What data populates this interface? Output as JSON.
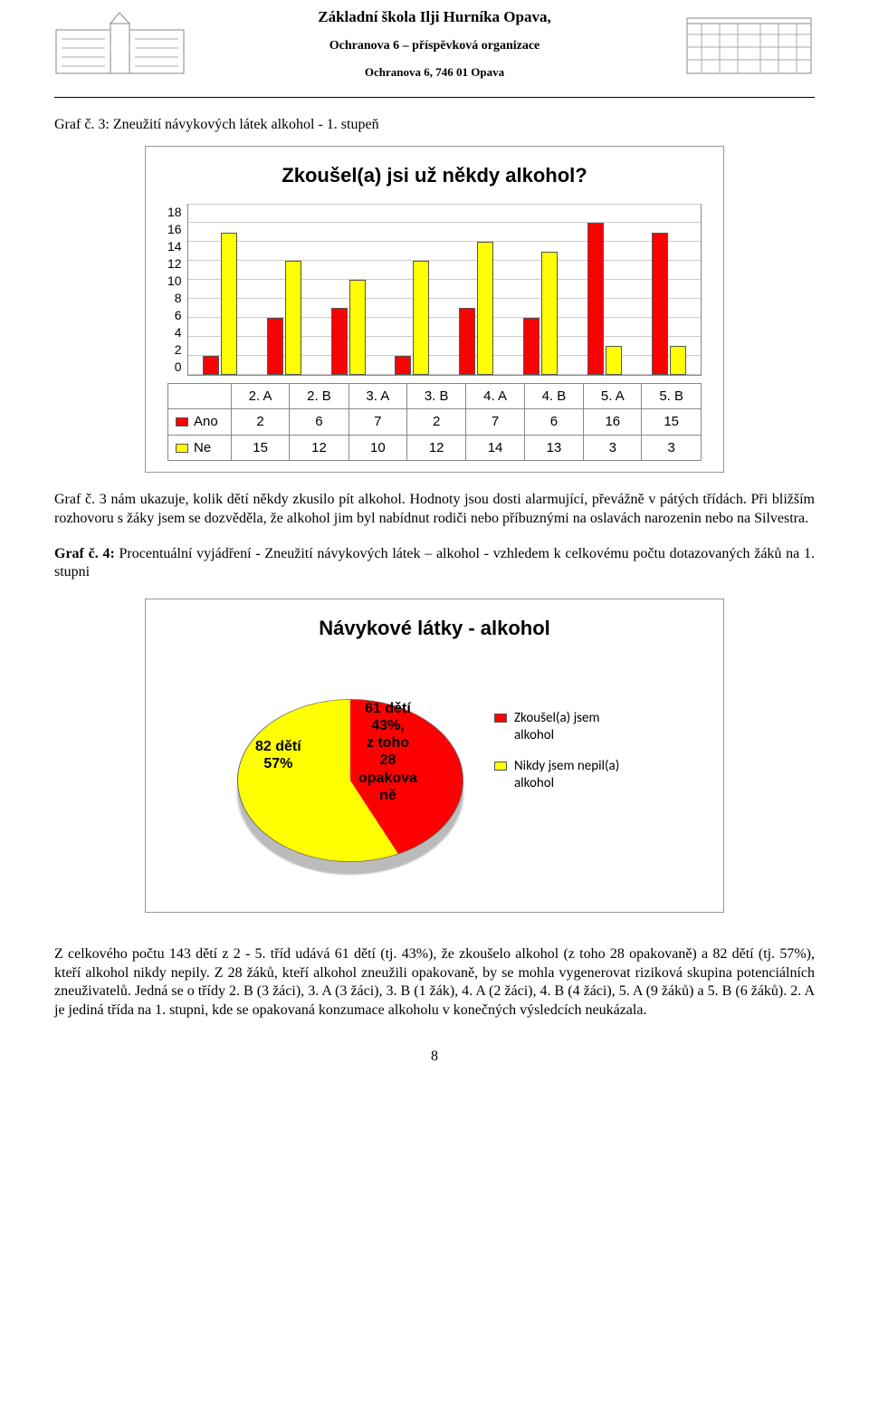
{
  "header": {
    "line1": "Základní škola Ilji Hurníka Opava,",
    "line2": "Ochranova 6 – příspěvková organizace",
    "line3": "Ochranova 6, 746 01 Opava"
  },
  "caption1": "Graf č. 3: Zneužití návykových látek alkohol - 1. stupeň",
  "barChart": {
    "title": "Zkoušel(a) jsi už někdy alkohol?",
    "yticks": [
      "18",
      "16",
      "14",
      "12",
      "10",
      "8",
      "6",
      "4",
      "2",
      "0"
    ],
    "ymax": 18,
    "categories": [
      "2. A",
      "2. B",
      "3. A",
      "3. B",
      "4. A",
      "4. B",
      "5. A",
      "5. B"
    ],
    "series": [
      {
        "name": "Ano",
        "color": "#ff0000",
        "values": [
          2,
          6,
          7,
          2,
          7,
          6,
          16,
          15
        ]
      },
      {
        "name": "Ne",
        "color": "#ffff00",
        "values": [
          15,
          12,
          10,
          12,
          14,
          13,
          3,
          3
        ]
      }
    ],
    "grid_color": "#cccccc"
  },
  "para1": "Graf č. 3 nám ukazuje, kolik dětí někdy zkusilo pít alkohol. Hodnoty jsou dosti alarmující, převážně v pátých třídách. Při bližším rozhovoru s žáky jsem se dozvěděla, že alkohol jim byl nabídnut rodiči nebo příbuznými na oslavách narozenin nebo na Silvestra.",
  "caption2_prefix": "Graf č. 4:",
  "caption2_rest": " Procentuální vyjádření - Zneužití návykových látek – alkohol - vzhledem k celkovému počtu dotazovaných žáků na 1. stupni",
  "pieChart": {
    "title": "Návykové látky - alkohol",
    "slice1": {
      "pct": 43,
      "color": "#ff0000",
      "label_lines": [
        "61 dětí",
        "43%,",
        "z toho",
        "28",
        "opakova",
        "ně"
      ]
    },
    "slice2": {
      "pct": 57,
      "color": "#ffff00",
      "label_lines": [
        "82 dětí",
        "57%"
      ]
    },
    "legend": [
      {
        "color": "#ff0000",
        "text": "Zkoušel(a) jsem alkohol"
      },
      {
        "color": "#ffff00",
        "text": "Nikdy jsem nepil(a) alkohol"
      }
    ]
  },
  "para2": "Z celkového počtu 143 dětí z 2 - 5. tříd udává 61 dětí (tj. 43%), že zkoušelo alkohol (z toho 28 opakovaně) a 82 dětí (tj. 57%), kteří alkohol nikdy nepily. Z 28 žáků, kteří alkohol zneužili opakovaně, by se mohla vygenerovat riziková skupina potenciálních zneuživatelů. Jedná se o třídy 2. B (3 žáci), 3. A (3 žáci), 3. B (1 žák), 4. A (2 žáci), 4. B (4 žáci), 5. A (9 žáků) a 5. B (6 žáků). 2. A je jediná třída na 1. stupni, kde se opakovaná konzumace alkoholu v konečných výsledcích neukázala.",
  "pageNum": "8"
}
